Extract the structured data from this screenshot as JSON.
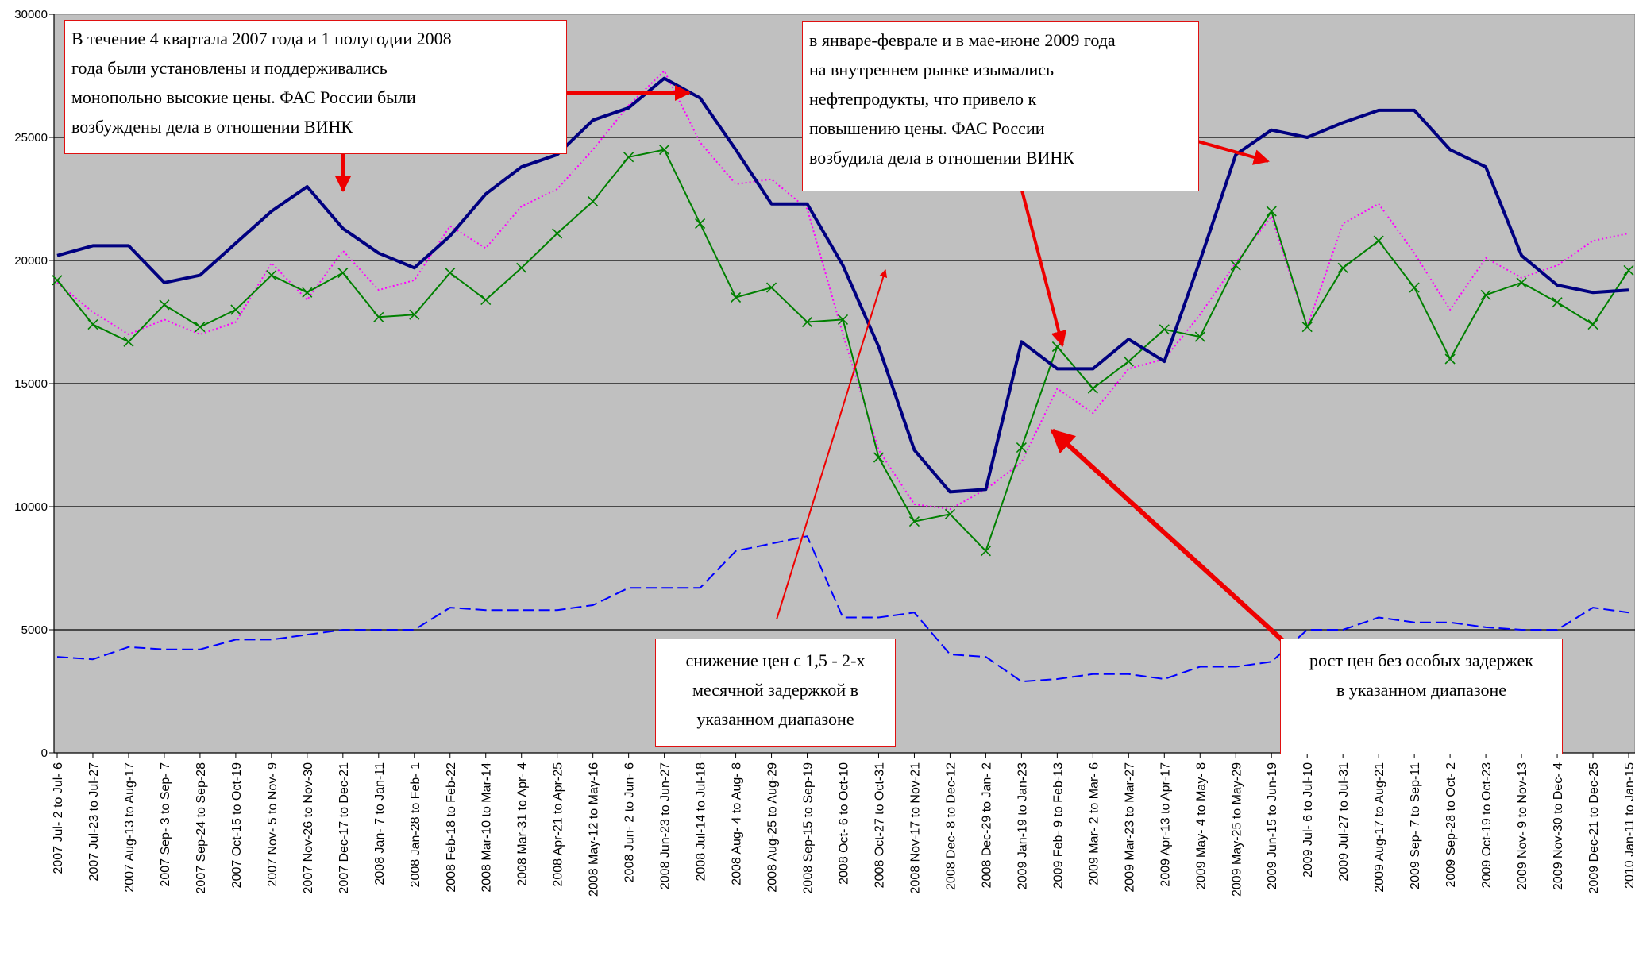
{
  "chart_data": {
    "type": "line",
    "ylim": [
      0,
      30000
    ],
    "yticks": [
      0,
      5000,
      10000,
      15000,
      20000,
      25000,
      30000
    ],
    "grid": true,
    "categories": [
      "2007 Jul- 2 to Jul- 6",
      "2007 Jul-23 to Jul-27",
      "2007 Aug-13 to Aug-17",
      "2007 Sep- 3 to Sep- 7",
      "2007 Sep-24 to Sep-28",
      "2007 Oct-15 to Oct-19",
      "2007 Nov- 5 to Nov- 9",
      "2007 Nov-26 to Nov-30",
      "2007 Dec-17 to Dec-21",
      "2008 Jan- 7 to Jan-11",
      "2008 Jan-28 to Feb- 1",
      "2008 Feb-18 to Feb-22",
      "2008 Mar-10 to Mar-14",
      "2008 Mar-31 to Apr- 4",
      "2008 Apr-21 to Apr-25",
      "2008 May-12 to May-16",
      "2008 Jun- 2 to Jun- 6",
      "2008 Jun-23 to Jun-27",
      "2008 Jul-14 to Jul-18",
      "2008 Aug- 4 to Aug- 8",
      "2008 Aug-25 to Aug-29",
      "2008 Sep-15 to Sep-19",
      "2008 Oct- 6 to Oct-10",
      "2008 Oct-27 to Oct-31",
      "2008 Nov-17 to Nov-21",
      "2008 Dec- 8 to Dec-12",
      "2008 Dec-29 to Jan- 2",
      "2009 Jan-19 to Jan-23",
      "2009 Feb- 9 to Feb-13",
      "2009 Mar- 2 to Mar- 6",
      "2009 Mar-23 to Mar-27",
      "2009 Apr-13 to Apr-17",
      "2009 May- 4 to May- 8",
      "2009 May-25 to May-29",
      "2009 Jun-15 to Jun-19",
      "2009 Jul- 6 to Jul-10",
      "2009 Jul-27 to Jul-31",
      "2009 Aug-17 to Aug-21",
      "2009 Sep- 7 to Sep-11",
      "2009 Sep-28 to Oct- 2",
      "2009 Oct-19 to Oct-23",
      "2009 Nov- 9 to Nov-13",
      "2009 Nov-30 to Dec- 4",
      "2009 Dec-21 to Dec-25",
      "2010 Jan-11 to Jan-15"
    ],
    "series": [
      {
        "color": "#000080",
        "style": "thick-solid",
        "values": [
          20200,
          20600,
          20600,
          19100,
          19400,
          20700,
          22000,
          23000,
          21300,
          20300,
          19700,
          21000,
          22700,
          23800,
          24300,
          25700,
          26200,
          27400,
          26600,
          24500,
          22300,
          22300,
          19800,
          16500,
          12300,
          10600,
          10700,
          16700,
          15600,
          15600,
          16800,
          15900,
          20000,
          24300,
          25300,
          25000,
          25600,
          26100,
          26100,
          24500,
          23800,
          20200,
          19000,
          18700,
          18800
        ]
      },
      {
        "color": "#ff00ff",
        "style": "dotted",
        "values": [
          19100,
          17900,
          17000,
          17600,
          17000,
          17500,
          19900,
          18400,
          20400,
          18800,
          19200,
          21400,
          20500,
          22200,
          22900,
          24500,
          26300,
          27700,
          24800,
          23100,
          23300,
          22100,
          17000,
          12300,
          10100,
          9900,
          10700,
          11800,
          14800,
          13800,
          15600,
          16000,
          17800,
          19900,
          21800,
          17300,
          21500,
          22300,
          20300,
          18000,
          20100,
          19300,
          19800,
          20800,
          21100
        ]
      },
      {
        "color": "#008000",
        "style": "solid-x-markers",
        "values": [
          19200,
          17400,
          16700,
          18200,
          17300,
          18000,
          19400,
          18700,
          19500,
          17700,
          17800,
          19500,
          18400,
          19700,
          21100,
          22400,
          24200,
          24500,
          21500,
          18500,
          18900,
          17500,
          17600,
          12000,
          9400,
          9700,
          8200,
          12400,
          16500,
          14800,
          15900,
          17200,
          16900,
          19800,
          22000,
          17300,
          19700,
          20800,
          18900,
          16000,
          18600,
          19100,
          18300,
          17400,
          19600
        ]
      },
      {
        "color": "#0000ff",
        "style": "dashed",
        "values": [
          3900,
          3800,
          4300,
          4200,
          4200,
          4600,
          4600,
          4800,
          5000,
          5000,
          5000,
          5900,
          5800,
          5800,
          5800,
          6000,
          6700,
          6700,
          6700,
          8200,
          8500,
          8800,
          5500,
          5500,
          5700,
          4000,
          3900,
          2900,
          3000,
          3200,
          3200,
          3000,
          3500,
          3500,
          3700,
          5000,
          5000,
          5500,
          5300,
          5300,
          5100,
          5000,
          5000,
          5900,
          5700
        ]
      }
    ],
    "annotations": [
      {
        "lines": [
          "В течение 4 квартала 2007 года и 1 полугодии 2008",
          "года были установлены и поддерживались",
          "монопольно высокие цены. ФАС России были",
          "возбуждены дела в отношении ВИНК"
        ]
      },
      {
        "lines": [
          "в январе-феврале и в мае-июне 2009 года",
          "на внутреннем рынке изымались",
          "нефтепродукты, что привело к",
          "повышению цены. ФАС России",
          "возбудила дела в отношении ВИНК"
        ]
      },
      {
        "lines": [
          "снижение цен с 1,5 - 2-х",
          "месячной задержкой в",
          "указанном диапазоне"
        ]
      },
      {
        "lines": [
          "рост цен без особых задержек",
          "в указанном диапазоне"
        ]
      }
    ]
  }
}
